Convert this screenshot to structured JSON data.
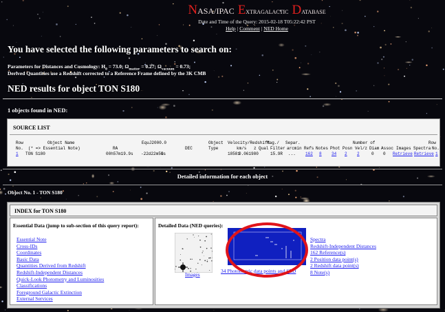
{
  "header": {
    "title_words": [
      "NASA/IPAC",
      "Extragalactic",
      "Database"
    ],
    "query_time": "Date and Time of the Query: 2015-02-18 T05:22:42 PST",
    "links": [
      "Help",
      "Comment",
      "NED Home"
    ],
    "separator": "|"
  },
  "parameters": {
    "heading": "You have selected the following parameters to search on:",
    "cosmology": [
      "Parameters for Distances and Cosmology: H",
      "0",
      " = 73.0; Ω",
      "matter",
      " = 0.27; Ω",
      "vacuum",
      " = 0.73;"
    ],
    "derived": "Derived Quantities use a Redshift corrected to a Reference Frame defined by the 3K CMB"
  },
  "results_heading": "NED results for object TON S180",
  "objects_found": "1 objects found in NED:",
  "source_list": {
    "title": "SOURCE LIST",
    "header_rows": [
      [
        "Row",
        "Object Name",
        "EquJ2000.0",
        "Object",
        "Velocity/Redshift",
        "Mag./",
        "Separ.",
        "Number of",
        "Row"
      ],
      [
        "No.",
        "(* => Essential Note)",
        "RA",
        "DEC",
        "Type",
        "km/s",
        "z",
        "Qual",
        "Filter",
        "arcmin",
        "Refs",
        "Notes",
        "Phot",
        "Posn",
        "Vel/z",
        "Diam",
        "Assoc",
        "Images",
        "Spectra",
        "No."
      ]
    ],
    "rows": [
      [
        "1",
        "TON S180",
        "00h57m19.9s",
        "-22d22m59s",
        "G",
        "18581",
        "0.061980",
        "15.9R",
        "...",
        "162",
        "8",
        "34",
        "2",
        "2",
        "0",
        "0",
        "Retrieve",
        "Retrieve",
        "1"
      ]
    ]
  },
  "detail_bar": "Detailed information for each object",
  "object_heading": "Object No. 1 - TON S180",
  "index": {
    "title": "INDEX for TON S180",
    "essential_title": "Essential Data (jump to sub-section of this query report):",
    "essential_links": [
      "Essential Note",
      "Cross-IDs",
      "Coordinates",
      "Basic Data",
      "Quantities Derived from Redshift",
      "Redshift-Independent Distances",
      "Quick-Look Photometry and Luminosities",
      "Classifications",
      "Foreground Galactic Extinction",
      "External Services"
    ],
    "detailed_title": "Detailed Data (NED queries):",
    "images_link": "Images",
    "sed_link": "34 Photometric data points and SED",
    "detailed_links": [
      "Spectra",
      "Redshift-Independent Distances",
      "162 Reference(s)",
      "2 Position data point(s)",
      "2 Redshift data point(s)",
      "8 Note(s)"
    ]
  }
}
